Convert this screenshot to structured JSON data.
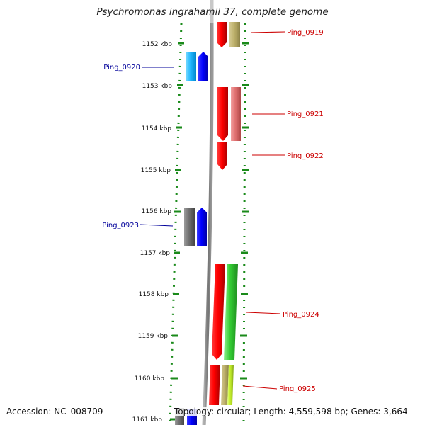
{
  "title": "Psychromonas ingrahamii 37, complete genome",
  "accession": "Accession: NC_008709",
  "topology": "Topology: circular; Length: 4,559,598 bp; Genes: 3,664",
  "kbp_labels": [
    "1152 kbp",
    "1153 kbp",
    "1154 kbp",
    "1155 kbp",
    "1156 kbp",
    "1157 kbp",
    "1158 kbp",
    "1159 kbp",
    "1160 kbp",
    "1161 kbp"
  ],
  "genes": [
    {
      "name": "Ping_0919",
      "strand": "forward",
      "color": "#cc0000"
    },
    {
      "name": "Ping_0920",
      "strand": "reverse",
      "color": "#00009a"
    },
    {
      "name": "Ping_0921",
      "strand": "forward",
      "color": "#cc0000"
    },
    {
      "name": "Ping_0922",
      "strand": "forward",
      "color": "#cc0000"
    },
    {
      "name": "Ping_0923",
      "strand": "reverse",
      "color": "#00009a"
    },
    {
      "name": "Ping_0924",
      "strand": "forward",
      "color": "#cc0000"
    },
    {
      "name": "Ping_0925",
      "strand": "forward",
      "color": "#cc0000"
    }
  ],
  "colors": {
    "forward_cds": "#ff0000",
    "reverse_cds": "#0000ff",
    "tick": "#1a8a1a",
    "backbone": "#7a7a7a",
    "forward_label": "#cc0000",
    "reverse_label": "#00009a"
  }
}
